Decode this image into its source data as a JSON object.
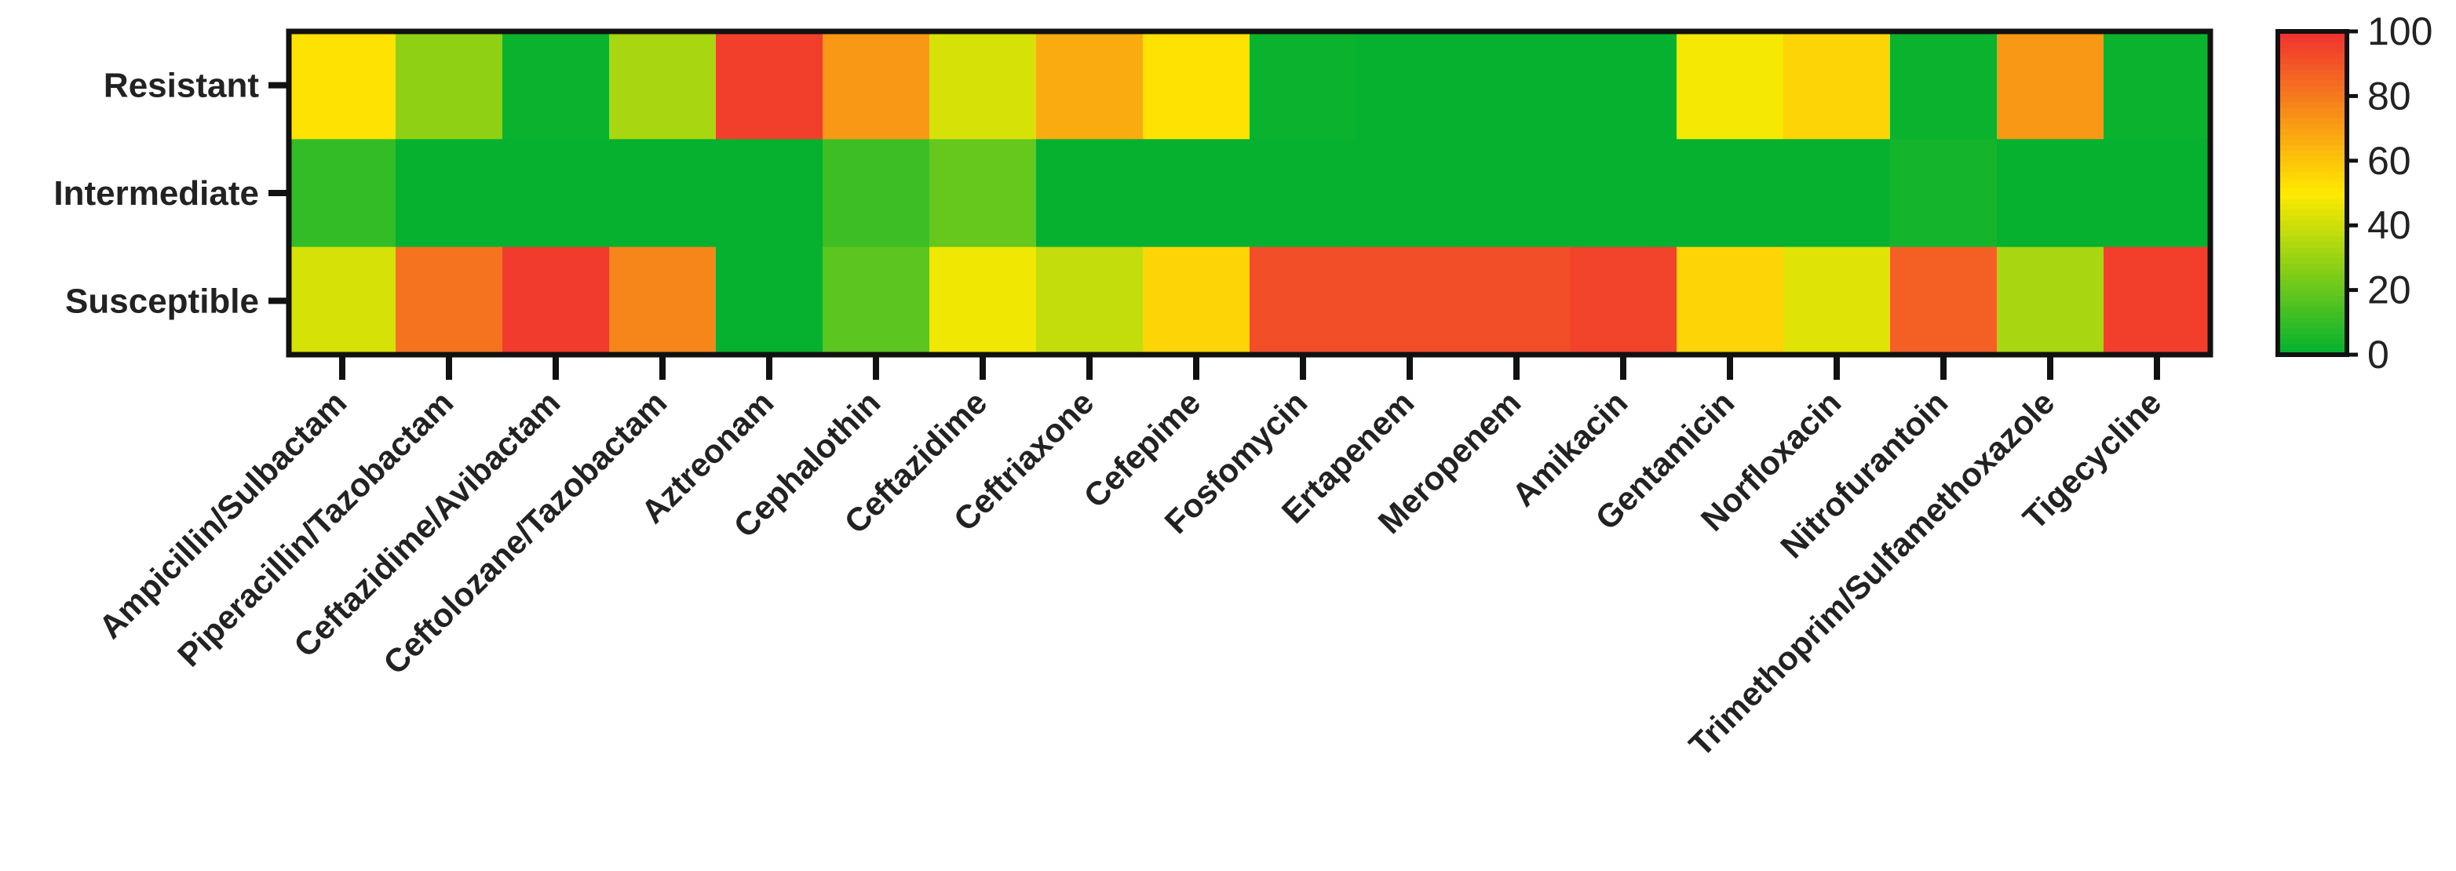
{
  "chart_data": {
    "type": "heatmap",
    "title": "",
    "xlabel": "",
    "ylabel": "",
    "rows": [
      "Resistant",
      "Intermediate",
      "Susceptible"
    ],
    "columns": [
      "Ampicillin/Sulbactam",
      "Piperacillin/Tazobactam",
      "Ceftazidime/Avibactam",
      "Ceftolozane/Tazobactam",
      "Aztreonam",
      "Cephalothin",
      "Ceftazidime",
      "Ceftriaxone",
      "Cefepime",
      "Fosfomycin",
      "Ertapenem",
      "Meropenem",
      "Amikacin",
      "Gentamicin",
      "Norfloxacin",
      "Nitrofurantoin",
      "Trimethoprim/Sulfamethoxazole",
      "Tigecycline"
    ],
    "values": [
      [
        52,
        28,
        2,
        33,
        96,
        72,
        42,
        67,
        52,
        2,
        1,
        1,
        1,
        48,
        56,
        2,
        72,
        2
      ],
      [
        10,
        1,
        1,
        1,
        1,
        12,
        20,
        1,
        1,
        1,
        1,
        1,
        1,
        1,
        1,
        4,
        1,
        1
      ],
      [
        42,
        82,
        97,
        77,
        1,
        18,
        47,
        38,
        56,
        92,
        92,
        92,
        95,
        56,
        44,
        87,
        33,
        96
      ]
    ],
    "colorbar": {
      "range": [
        0,
        100
      ],
      "ticks": [
        "0",
        "20",
        "40",
        "60",
        "80",
        "100"
      ],
      "placement": "right"
    },
    "colors": {
      "low": "#00b030",
      "mid": "#ffea00",
      "high": "#f03030"
    }
  }
}
